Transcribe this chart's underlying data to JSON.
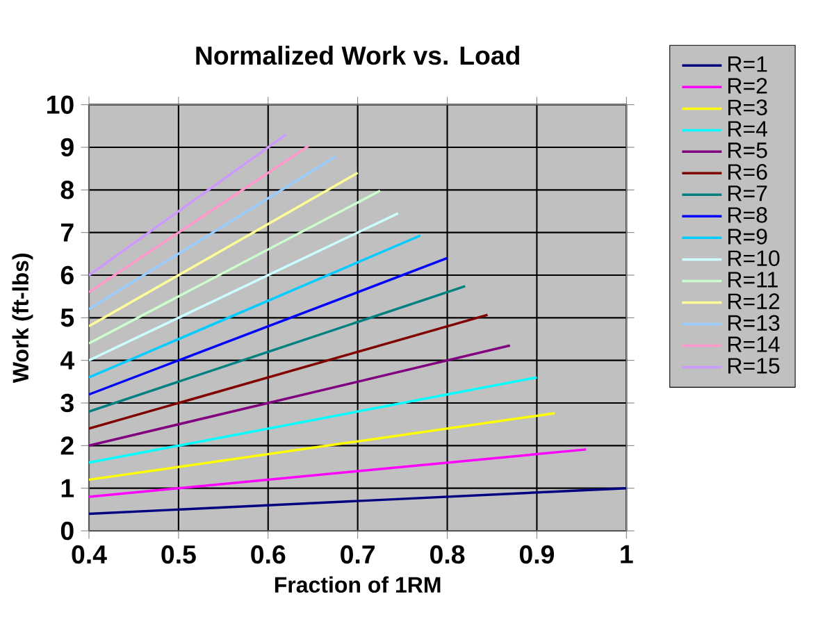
{
  "chart_data": {
    "type": "line",
    "title": "Normalized Work vs. Load",
    "xlabel": "Fraction of 1RM",
    "ylabel": "Work (ft-lbs)",
    "xlim": [
      0.4,
      1
    ],
    "xticks": [
      0.4,
      0.5,
      0.6,
      0.7,
      0.8,
      0.9,
      1
    ],
    "ylim": [
      0,
      10
    ],
    "yticks": [
      0,
      1,
      2,
      3,
      4,
      5,
      6,
      7,
      8,
      9,
      10
    ],
    "grid": true,
    "legend": "right",
    "marker": "none",
    "series": [
      {
        "name": "R=1",
        "color": "#000080",
        "x": [
          0.4,
          1
        ],
        "values": [
          0.4,
          1
        ]
      },
      {
        "name": "R=2",
        "color": "#ff00ff",
        "x": [
          0.4,
          0.955
        ],
        "values": [
          0.8,
          1.91
        ]
      },
      {
        "name": "R=3",
        "color": "#ffff00",
        "x": [
          0.4,
          0.92
        ],
        "values": [
          1.2,
          2.76
        ]
      },
      {
        "name": "R=4",
        "color": "#00ffff",
        "x": [
          0.4,
          0.9
        ],
        "values": [
          1.6,
          3.6
        ]
      },
      {
        "name": "R=5",
        "color": "#800080",
        "x": [
          0.4,
          0.87
        ],
        "values": [
          2.0,
          4.35
        ]
      },
      {
        "name": "R=6",
        "color": "#800000",
        "x": [
          0.4,
          0.845
        ],
        "values": [
          2.4,
          5.07
        ]
      },
      {
        "name": "R=7",
        "color": "#008080",
        "x": [
          0.4,
          0.82
        ],
        "values": [
          2.8,
          5.74
        ]
      },
      {
        "name": "R=8",
        "color": "#0000ff",
        "x": [
          0.4,
          0.8
        ],
        "values": [
          3.2,
          6.4
        ]
      },
      {
        "name": "R=9",
        "color": "#00ccff",
        "x": [
          0.4,
          0.77
        ],
        "values": [
          3.6,
          6.93
        ]
      },
      {
        "name": "R=10",
        "color": "#ccffff",
        "x": [
          0.4,
          0.745
        ],
        "values": [
          4.0,
          7.45
        ]
      },
      {
        "name": "R=11",
        "color": "#ccffcc",
        "x": [
          0.4,
          0.725
        ],
        "values": [
          4.4,
          7.98
        ]
      },
      {
        "name": "R=12",
        "color": "#ffff99",
        "x": [
          0.4,
          0.7
        ],
        "values": [
          4.8,
          8.4
        ]
      },
      {
        "name": "R=13",
        "color": "#99ccff",
        "x": [
          0.4,
          0.675
        ],
        "values": [
          5.2,
          8.78
        ]
      },
      {
        "name": "R=14",
        "color": "#ff99cc",
        "x": [
          0.4,
          0.645
        ],
        "values": [
          5.6,
          9.03
        ]
      },
      {
        "name": "R=15",
        "color": "#cc99ff",
        "x": [
          0.4,
          0.62
        ],
        "values": [
          6.0,
          9.3
        ]
      }
    ]
  }
}
